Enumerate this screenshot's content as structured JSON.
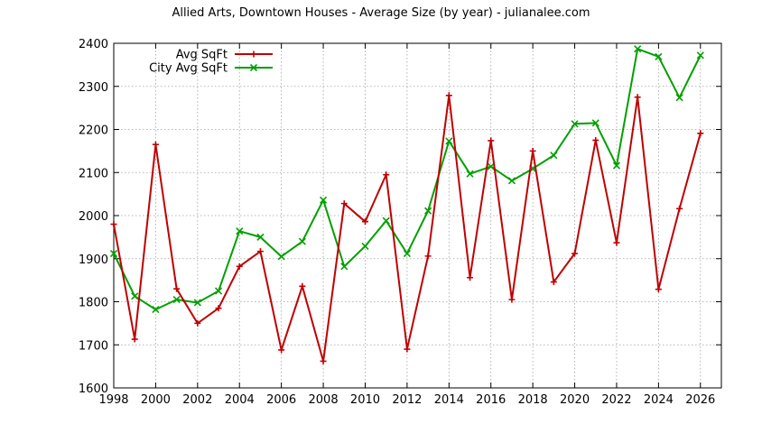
{
  "chart_data": {
    "type": "line",
    "title": "Allied Arts, Downtown Houses - Average Size (by year) - julianalee.com",
    "xlabel": "",
    "ylabel": "",
    "xlim": [
      1998,
      2027
    ],
    "ylim": [
      1600,
      2400
    ],
    "xticks": [
      1998,
      2000,
      2002,
      2004,
      2006,
      2008,
      2010,
      2012,
      2014,
      2016,
      2018,
      2020,
      2022,
      2024,
      2026
    ],
    "yticks": [
      1600,
      1700,
      1800,
      1900,
      2000,
      2100,
      2200,
      2300,
      2400
    ],
    "grid": true,
    "legend_position": "top-left",
    "x": [
      1998,
      1999,
      2000,
      2001,
      2002,
      2003,
      2004,
      2005,
      2006,
      2007,
      2008,
      2009,
      2010,
      2011,
      2012,
      2013,
      2014,
      2015,
      2016,
      2017,
      2018,
      2019,
      2020,
      2021,
      2022,
      2023,
      2024,
      2025,
      2026
    ],
    "series": [
      {
        "name": "Avg SqFt",
        "color": "#c00000",
        "marker": "plus",
        "values": [
          1980,
          1713,
          2165,
          1830,
          1750,
          1785,
          1882,
          1917,
          1688,
          1836,
          1662,
          2028,
          1986,
          2095,
          1690,
          1906,
          2279,
          1856,
          2174,
          1805,
          2150,
          1846,
          1912,
          2175,
          1937,
          2275,
          1829,
          2016,
          2191
        ]
      },
      {
        "name": "City Avg SqFt",
        "color": "#00a000",
        "marker": "cross",
        "values": [
          1912,
          1813,
          1782,
          1805,
          1798,
          1825,
          1964,
          1950,
          1905,
          1940,
          2036,
          1882,
          1929,
          1988,
          1912,
          2011,
          2173,
          2097,
          2114,
          2081,
          2109,
          2140,
          2213,
          2215,
          2116,
          2387,
          2369,
          2274,
          2372
        ]
      }
    ]
  }
}
